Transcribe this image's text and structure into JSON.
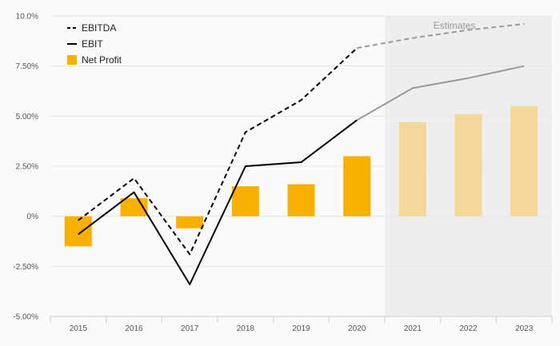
{
  "chart_data": {
    "type": "bar",
    "categories": [
      "2015",
      "2016",
      "2017",
      "2018",
      "2019",
      "2020",
      "2021",
      "2022",
      "2023"
    ],
    "series": [
      {
        "name": "EBITDA",
        "kind": "line",
        "style": "dashed",
        "values": [
          -0.2,
          1.9,
          -1.9,
          4.2,
          5.8,
          8.4,
          8.9,
          9.3,
          9.6
        ]
      },
      {
        "name": "EBIT",
        "kind": "line",
        "style": "solid",
        "values": [
          -0.9,
          1.2,
          -3.4,
          2.5,
          2.7,
          4.8,
          6.4,
          6.9,
          7.5
        ]
      },
      {
        "name": "Net Profit",
        "kind": "bar",
        "values": [
          -1.5,
          0.9,
          -0.6,
          1.5,
          1.6,
          3.0,
          4.7,
          5.1,
          5.5
        ]
      }
    ],
    "estimate_start_index": 6,
    "estimates_label": "Estimates",
    "y_ticks": [
      "10.0%",
      "7.50%",
      "5.00%",
      "2.50%",
      "0%",
      "-2.50%",
      "-5.00%"
    ],
    "y_tick_values": [
      10,
      7.5,
      5,
      2.5,
      0,
      -2.5,
      -5
    ],
    "ylim": [
      -5,
      10
    ],
    "grid": true,
    "legend": "top-left",
    "colors": {
      "bar": "#f9b000",
      "bar_estimate": "#f3d89a",
      "line": "#000000",
      "line_estimate": "#999999",
      "estimate_band": "#eeeeee",
      "grid": "#e6e6e6"
    }
  }
}
